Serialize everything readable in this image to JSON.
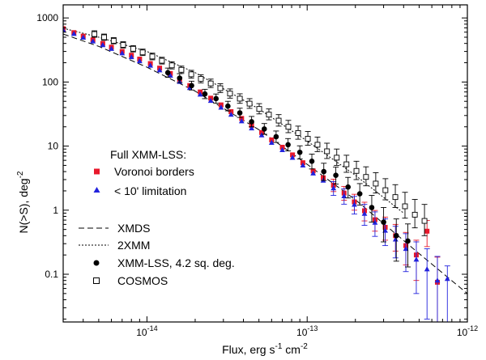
{
  "chart_data": {
    "type": "scatter",
    "title": "",
    "xlabel": {
      "main": "Flux, erg s",
      "sup1": "-1",
      "mid": " cm",
      "sup2": "-2"
    },
    "ylabel": {
      "main": "N(>S), deg",
      "sup": "-2"
    },
    "xscale": "log",
    "yscale": "log",
    "xlim": [
      3e-15,
      1e-12
    ],
    "ylim": [
      0.018,
      1600
    ],
    "x_ticks": [
      {
        "value": 1e-14,
        "base": "10",
        "exp": "-14"
      },
      {
        "value": 1e-13,
        "base": "10",
        "exp": "-13"
      },
      {
        "value": 1e-12,
        "base": "10",
        "exp": "-12"
      }
    ],
    "y_ticks": [
      {
        "value": 0.1,
        "label": "0.1"
      },
      {
        "value": 1,
        "label": "1"
      },
      {
        "value": 10,
        "label": "10"
      },
      {
        "value": 100,
        "label": "100"
      },
      {
        "value": 1000,
        "label": "1000"
      }
    ],
    "legend_title": "Full XMM-LSS:",
    "series": [
      {
        "name": "Voronoi borders",
        "kind": "points",
        "marker": "square",
        "color": "#e8182b",
        "x": [
          3e-15,
          3.5e-15,
          4e-15,
          4.6e-15,
          5.3e-15,
          6e-15,
          7e-15,
          8e-15,
          9e-15,
          1.05e-14,
          1.2e-14,
          1.4e-14,
          1.6e-14,
          1.85e-14,
          2.15e-14,
          2.5e-14,
          2.9e-14,
          3.35e-14,
          3.9e-14,
          4.5e-14,
          5.2e-14,
          6e-14,
          7e-14,
          8.1e-14,
          9.4e-14,
          1.09e-13,
          1.26e-13,
          1.46e-13,
          1.7e-13,
          1.97e-13,
          2.28e-13,
          2.65e-13,
          3.07e-13,
          3.56e-13,
          4.13e-13,
          4.8e-13,
          5.6e-13,
          6.5e-13
        ],
        "y": [
          680,
          590,
          520,
          455,
          400,
          350,
          300,
          262,
          228,
          194,
          165,
          136,
          110,
          88,
          70,
          56,
          44,
          34.5,
          27,
          21,
          16.3,
          12.5,
          9.6,
          7.3,
          5.5,
          4.1,
          3.2,
          2.45,
          1.85,
          1.35,
          0.98,
          0.71,
          0.54,
          0.4,
          0.28,
          0.2,
          0.47,
          0.075
        ],
        "err_hi": [
          0,
          0,
          0,
          0,
          0,
          0,
          0,
          0,
          0,
          0,
          0,
          0,
          0,
          0,
          0,
          0,
          0,
          0,
          0,
          0,
          0,
          0,
          0,
          0,
          0,
          0,
          0,
          0.6,
          0.5,
          0.42,
          0.35,
          0.28,
          0.24,
          0.2,
          0.17,
          0.14,
          0.22,
          0.11
        ],
        "err_lo": [
          0,
          0,
          0,
          0,
          0,
          0,
          0,
          0,
          0,
          0,
          0,
          0,
          0,
          0,
          0,
          0,
          0,
          0,
          0,
          0,
          0,
          0,
          0,
          0,
          0,
          0,
          0,
          0.5,
          0.42,
          0.35,
          0.3,
          0.24,
          0.2,
          0.17,
          0.14,
          0.12,
          0.2,
          0.06
        ]
      },
      {
        "name": "< 10' limitation",
        "kind": "points",
        "marker": "triangle",
        "color": "#2222dd",
        "x": [
          3e-15,
          3.5e-15,
          4e-15,
          4.6e-15,
          5.3e-15,
          6e-15,
          7e-15,
          8e-15,
          9e-15,
          1.05e-14,
          1.2e-14,
          1.4e-14,
          1.6e-14,
          1.85e-14,
          2.15e-14,
          2.5e-14,
          2.9e-14,
          3.35e-14,
          3.9e-14,
          4.5e-14,
          5.2e-14,
          6e-14,
          7e-14,
          8.1e-14,
          9.4e-14,
          1.09e-13,
          1.26e-13,
          1.46e-13,
          1.7e-13,
          1.97e-13,
          2.28e-13,
          2.65e-13,
          3.07e-13,
          3.56e-13,
          4.13e-13,
          4.8e-13,
          5.6e-13,
          6.5e-13,
          7.5e-13
        ],
        "y": [
          650,
          565,
          495,
          432,
          378,
          330,
          282,
          245,
          212,
          181,
          153,
          126,
          101,
          81,
          64,
          51,
          40,
          31,
          24.5,
          19,
          14.8,
          11.3,
          8.7,
          6.6,
          5,
          3.75,
          2.9,
          2.2,
          1.66,
          1.22,
          0.88,
          0.64,
          0.48,
          0.35,
          0.25,
          0.17,
          0.12,
          0.08,
          0.085
        ],
        "err_hi": [
          0,
          0,
          0,
          0,
          0,
          0,
          0,
          0,
          0,
          0,
          0,
          0,
          0,
          0,
          0,
          0,
          0,
          0,
          0,
          0,
          0,
          0,
          0,
          0,
          0,
          0,
          0,
          0.6,
          0.5,
          0.42,
          0.35,
          0.3,
          0.25,
          0.21,
          0.18,
          0.15,
          0.13,
          0.11,
          0.05
        ],
        "err_lo": [
          0,
          0,
          0,
          0,
          0,
          0,
          0,
          0,
          0,
          0,
          0,
          0,
          0,
          0,
          0,
          0,
          0,
          0,
          0,
          0,
          0,
          0,
          0,
          0,
          0,
          0,
          0,
          0.5,
          0.42,
          0.35,
          0.3,
          0.25,
          0.2,
          0.17,
          0.14,
          0.12,
          0.1,
          0.065,
          0.07
        ]
      },
      {
        "name": "XMDS",
        "kind": "line",
        "dash": "7,4",
        "color": "#000000",
        "x": [
          3e-15,
          5e-15,
          1e-14,
          2e-14,
          5e-14,
          1e-13,
          2e-13,
          5e-13,
          1e-12
        ],
        "y": [
          560,
          360,
          170,
          72,
          18,
          5.2,
          1.45,
          0.21,
          0.05
        ]
      },
      {
        "name": "2XMM",
        "kind": "line",
        "dash": "2,2",
        "color": "#000000",
        "x": [
          3e-15,
          5e-15,
          1e-14,
          2e-14,
          5e-14,
          1e-13,
          2e-13,
          4e-13
        ],
        "y": [
          690,
          500,
          300,
          140,
          38,
          12,
          3.5,
          0.9
        ]
      },
      {
        "name": "XMM-LSS, 4.2 sq. deg.",
        "kind": "points",
        "marker": "circle",
        "color": "#000000",
        "x": [
          1.35e-14,
          1.6e-14,
          1.9e-14,
          2.3e-14,
          2.7e-14,
          3.2e-14,
          3.8e-14,
          4.5e-14,
          5.4e-14,
          6.4e-14,
          7.6e-14,
          9e-14,
          1.07e-13,
          1.27e-13,
          1.51e-13,
          1.8e-13,
          2.13e-13,
          2.53e-13,
          3e-13,
          3.6e-13,
          4.25e-13
        ],
        "y": [
          140,
          115,
          88,
          65,
          55,
          42,
          33,
          24,
          18.5,
          14,
          10.5,
          8,
          5.8,
          4,
          3.5,
          2.3,
          1.8,
          1.1,
          0.65,
          0.4,
          0.33
        ],
        "err_hi": [
          25,
          20,
          15,
          12,
          10,
          8,
          6,
          5,
          4,
          3.2,
          2.6,
          2.1,
          1.7,
          1.4,
          1.2,
          0.95,
          0.8,
          0.6,
          0.45,
          0.33,
          0.28
        ],
        "err_lo": [
          22,
          17,
          13,
          10,
          8.5,
          6.5,
          5,
          4,
          3.2,
          2.6,
          2.1,
          1.7,
          1.4,
          1.1,
          0.95,
          0.75,
          0.6,
          0.45,
          0.33,
          0.24,
          0.2
        ]
      },
      {
        "name": "COSMOS",
        "kind": "points",
        "marker": "open-square",
        "color": "#000000",
        "x": [
          4.7e-15,
          5.4e-15,
          6.2e-15,
          7.1e-15,
          8.2e-15,
          9.4e-15,
          1.08e-14,
          1.24e-14,
          1.43e-14,
          1.64e-14,
          1.89e-14,
          2.17e-14,
          2.5e-14,
          2.87e-14,
          3.3e-14,
          3.8e-14,
          4.37e-14,
          5.02e-14,
          5.77e-14,
          6.64e-14,
          7.63e-14,
          8.78e-14,
          1.01e-13,
          1.16e-13,
          1.33e-13,
          1.53e-13,
          1.76e-13,
          2.03e-13,
          2.33e-13,
          2.68e-13,
          3.08e-13,
          3.55e-13,
          4.08e-13,
          4.7e-13,
          5.4e-13
        ],
        "y": [
          560,
          500,
          440,
          380,
          330,
          290,
          250,
          215,
          182,
          155,
          132,
          112,
          95,
          80,
          66,
          55,
          46,
          38,
          31,
          25,
          20,
          16,
          13,
          10.5,
          8.3,
          6.6,
          5.2,
          4.1,
          3.3,
          2.6,
          2.05,
          1.6,
          1.15,
          0.85,
          0.68
        ],
        "err_hi": [
          70,
          60,
          52,
          45,
          40,
          36,
          32,
          28,
          25,
          22,
          20,
          18,
          16,
          14,
          12,
          10.5,
          9,
          8,
          7,
          6,
          5.2,
          4.5,
          3.9,
          3.3,
          2.8,
          2.4,
          2,
          1.7,
          1.45,
          1.25,
          1.05,
          0.9,
          0.75,
          0.62,
          0.55
        ],
        "err_lo": [
          60,
          52,
          45,
          40,
          35,
          31,
          28,
          24,
          22,
          19,
          17,
          15,
          13,
          11.5,
          10,
          8.5,
          7.2,
          6.2,
          5.3,
          4.5,
          3.8,
          3.2,
          2.7,
          2.3,
          1.9,
          1.6,
          1.3,
          1.1,
          0.9,
          0.75,
          0.6,
          0.5,
          0.4,
          0.32,
          0.28
        ]
      }
    ]
  }
}
